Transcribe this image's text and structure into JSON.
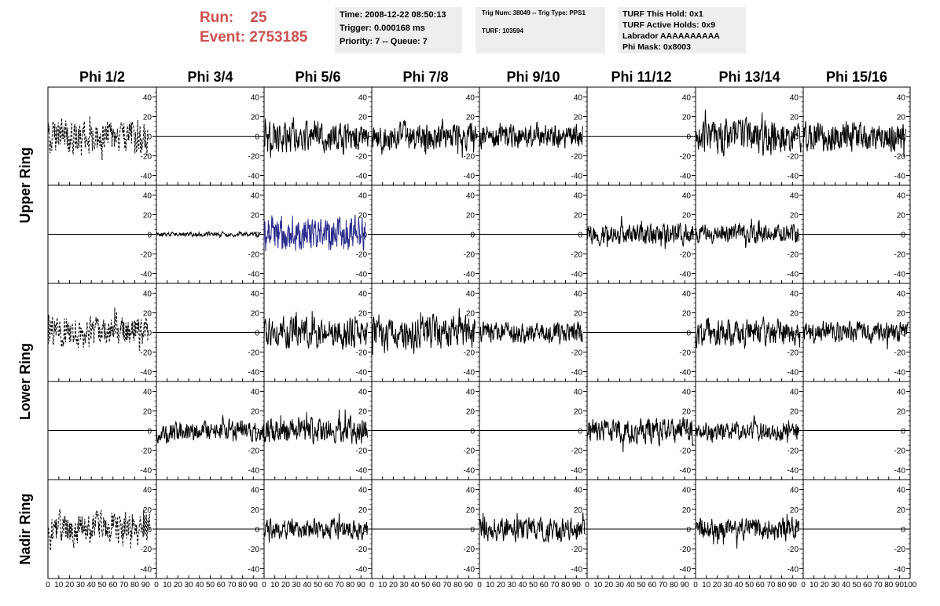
{
  "header": {
    "run_label": "Run:",
    "run_value": "25",
    "event_label": "Event:",
    "event_value": "2753185",
    "time": "Time: 2008-12-22 08:50:13",
    "trigger": "Trigger: 0.000168 ms",
    "priority": "Priority: 7 -- Queue: 7",
    "trig_num": "Trig Num: 38049 -- Trig Type: PPS1",
    "turf": "TURF: 103594",
    "turf_this_hold": "TURF This Hold: 0x1",
    "turf_active_holds": "TURF Active Holds: 0x9",
    "labrador": "Labrador AAAAAAAAAA",
    "phi_mask": "Phi Mask: 0x8003"
  },
  "colors": {
    "header_red": "#cc5050",
    "trace": "#000000",
    "highlight_trace": "#2b2b8c",
    "info_box_bg": "#eeeeee"
  },
  "chart_data": {
    "type": "line",
    "columns": [
      "Phi 1/2",
      "Phi 3/4",
      "Phi 5/6",
      "Phi 7/8",
      "Phi 9/10",
      "Phi 11/12",
      "Phi 13/14",
      "Phi 15/16"
    ],
    "rows": [
      "Upper Ring",
      "Upper Ring",
      "Lower Ring",
      "Lower Ring",
      "Nadir Ring"
    ],
    "row_labels": [
      "Upper Ring",
      "Lower Ring",
      "Nadir Ring"
    ],
    "xlim": [
      0,
      100
    ],
    "ylim": [
      -50,
      50
    ],
    "y_ticks": [
      -40,
      -20,
      0,
      20,
      40
    ],
    "x_ticks": [
      0,
      10,
      20,
      30,
      40,
      50,
      60,
      70,
      80,
      90,
      100
    ],
    "x_tick_labels": [
      "0",
      "10",
      "20",
      "30",
      "40",
      "50",
      "60",
      "70",
      "80",
      "90",
      "100"
    ],
    "y_tick_labels": [
      "-40",
      "-20",
      "0",
      "20",
      "40"
    ],
    "panels": [
      [
        {
          "style": "dashed",
          "amp": 22,
          "xmax": 92
        },
        {
          "style": "flat"
        },
        {
          "style": "noise",
          "amp": 20,
          "xmax": 97
        },
        {
          "style": "noise",
          "amp": 18,
          "xmax": 98
        },
        {
          "style": "noise",
          "amp": 16,
          "xmax": 96
        },
        {
          "style": "flat"
        },
        {
          "style": "noise",
          "amp": 22,
          "xmax": 98
        },
        {
          "style": "noise",
          "amp": 20,
          "xmax": 96
        }
      ],
      [
        {
          "style": "flat"
        },
        {
          "style": "noise",
          "amp": 3,
          "xmax": 97
        },
        {
          "style": "blue",
          "amp": 24,
          "xmax": 94
        },
        {
          "style": "flat"
        },
        {
          "style": "flat"
        },
        {
          "style": "noise",
          "amp": 14,
          "xmax": 98
        },
        {
          "style": "noise",
          "amp": 13,
          "xmax": 96
        },
        {
          "style": "flat"
        }
      ],
      [
        {
          "style": "dashed",
          "amp": 20,
          "xmax": 92
        },
        {
          "style": "flat"
        },
        {
          "style": "noise",
          "amp": 20,
          "xmax": 96
        },
        {
          "style": "noise",
          "amp": 22,
          "xmax": 96
        },
        {
          "style": "noise",
          "amp": 14,
          "xmax": 96
        },
        {
          "style": "flat"
        },
        {
          "style": "noise",
          "amp": 18,
          "xmax": 97
        },
        {
          "style": "noise",
          "amp": 14,
          "xmax": 98
        }
      ],
      [
        {
          "style": "flat"
        },
        {
          "style": "noise",
          "amp": 14,
          "xmax": 100
        },
        {
          "style": "noise",
          "amp": 18,
          "xmax": 96
        },
        {
          "style": "flat"
        },
        {
          "style": "flat"
        },
        {
          "style": "noise",
          "amp": 17,
          "xmax": 98
        },
        {
          "style": "noise",
          "amp": 13,
          "xmax": 96
        },
        {
          "style": "flat"
        }
      ],
      [
        {
          "style": "dashed",
          "amp": 22,
          "xmax": 94
        },
        {
          "style": "flat"
        },
        {
          "style": "noise",
          "amp": 13,
          "xmax": 96
        },
        {
          "style": "flat"
        },
        {
          "style": "noise",
          "amp": 16,
          "xmax": 98
        },
        {
          "style": "flat"
        },
        {
          "style": "noise",
          "amp": 15,
          "xmax": 96
        },
        {
          "style": "flat"
        }
      ]
    ]
  }
}
